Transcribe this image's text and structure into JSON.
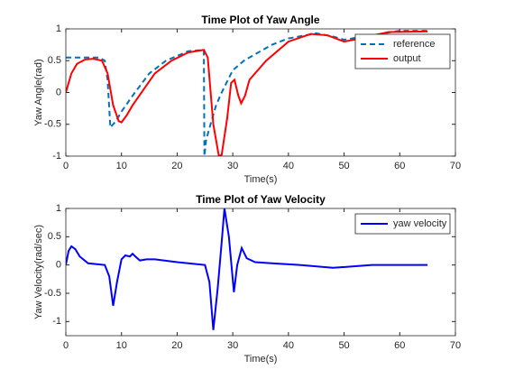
{
  "chart_data": [
    {
      "type": "line",
      "title": "Time Plot of Yaw Angle",
      "xlabel": "Time(s)",
      "ylabel": "Yaw Angle(rad)",
      "xlim": [
        0,
        70
      ],
      "ylim": [
        -1,
        1
      ],
      "xticks": [
        0,
        10,
        20,
        30,
        40,
        50,
        60,
        70
      ],
      "yticks": [
        -1,
        -0.5,
        0,
        0.5,
        1
      ],
      "legend": "upper right",
      "series": [
        {
          "name": "reference",
          "color": "#0072bd",
          "linestyle": "dashed",
          "x": [
            0,
            3,
            6,
            7,
            7.5,
            8,
            9,
            10,
            12,
            15,
            18,
            22,
            24.8,
            24.9,
            25.2,
            26,
            27,
            28,
            30,
            32,
            34,
            37,
            40,
            45,
            48,
            50,
            55,
            60,
            65
          ],
          "values": [
            0.55,
            0.55,
            0.55,
            0.5,
            0.2,
            -0.55,
            -0.45,
            -0.3,
            -0.05,
            0.3,
            0.5,
            0.65,
            0.67,
            -1,
            -0.75,
            -0.5,
            -0.2,
            0,
            0.35,
            0.5,
            0.6,
            0.75,
            0.85,
            0.93,
            0.88,
            0.83,
            0.9,
            0.97,
            0.97
          ]
        },
        {
          "name": "output",
          "color": "#ff0000",
          "linestyle": "solid",
          "x": [
            0,
            1,
            2,
            3.5,
            5,
            6.5,
            7.5,
            8.5,
            9.5,
            10,
            11,
            12,
            14,
            16,
            19,
            22,
            24.8,
            25.5,
            26.5,
            27.5,
            28,
            29,
            29.7,
            30.3,
            31,
            31.5,
            32.2,
            33,
            36,
            40,
            44,
            47,
            50,
            53,
            58,
            65
          ],
          "values": [
            0,
            0.3,
            0.45,
            0.52,
            0.53,
            0.5,
            0.3,
            -0.2,
            -0.45,
            -0.47,
            -0.35,
            -0.2,
            0.05,
            0.3,
            0.5,
            0.63,
            0.67,
            0.55,
            -0.5,
            -1,
            -0.98,
            -0.4,
            0.15,
            0.2,
            -0.05,
            -0.17,
            -0.05,
            0.2,
            0.5,
            0.8,
            0.92,
            0.9,
            0.8,
            0.85,
            0.95,
            0.96
          ]
        }
      ]
    },
    {
      "type": "line",
      "title": "Time Plot of Yaw Velocity",
      "xlabel": "Time(s)",
      "ylabel": "Yaw Velocity(rad/sec)",
      "xlim": [
        0,
        70
      ],
      "ylim": [
        -1.25,
        1
      ],
      "xticks": [
        0,
        10,
        20,
        30,
        40,
        50,
        60,
        70
      ],
      "yticks": [
        -1,
        -0.5,
        0,
        0.5,
        1
      ],
      "legend": "upper right",
      "series": [
        {
          "name": "yaw velocity",
          "color": "#0000ff",
          "linestyle": "solid",
          "x": [
            0,
            0.5,
            1,
            1.7,
            2.5,
            4,
            7,
            7.8,
            8.5,
            9.2,
            10,
            10.7,
            11.5,
            12,
            12.5,
            13.3,
            14.5,
            16,
            20,
            25,
            25.8,
            26.5,
            27.3,
            28,
            28.5,
            29.3,
            30.2,
            30.8,
            31.6,
            32.5,
            34,
            37,
            42,
            48,
            55,
            65
          ],
          "values": [
            0,
            0.25,
            0.33,
            0.28,
            0.15,
            0.03,
            0,
            -0.2,
            -0.72,
            -0.3,
            0.1,
            0.17,
            0.15,
            0.2,
            0.15,
            0.08,
            0.1,
            0.1,
            0.05,
            0,
            -0.3,
            -1.15,
            -0.4,
            0.4,
            1,
            0.5,
            -0.48,
            0,
            0.3,
            0.12,
            0.05,
            0.03,
            0,
            -0.05,
            0,
            0
          ]
        }
      ]
    }
  ]
}
